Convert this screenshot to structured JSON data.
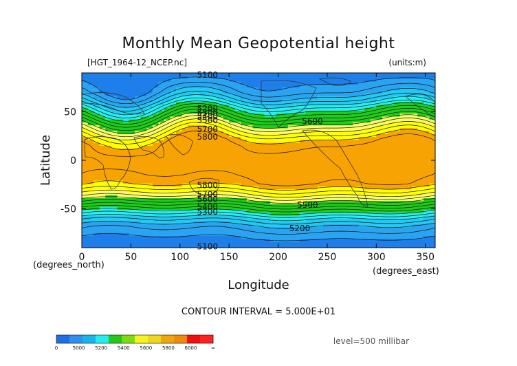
{
  "chart_data": {
    "type": "heatmap",
    "title": "Monthly Mean Geopotential height",
    "file_label": "[HGT_1964-12_NCEP.nc]",
    "units_label": "(units:m)",
    "xlabel": "Longitude",
    "ylabel": "Latitude",
    "x_unit_label": "(degrees_east)",
    "y_unit_label": "(degrees_north)",
    "xlim": [
      0,
      360
    ],
    "ylim": [
      -90,
      90
    ],
    "x_ticks": [
      0,
      50,
      100,
      150,
      200,
      250,
      300,
      350
    ],
    "y_ticks": [
      50,
      0,
      -50
    ],
    "contour_interval_text": "CONTOUR INTERVAL = 5.000E+01",
    "level_text": "level=500 millibar",
    "contour_labels": [
      {
        "text": "5100",
        "lon": 128,
        "lat": 88
      },
      {
        "text": "5200",
        "lon": 128,
        "lat": 53
      },
      {
        "text": "5300",
        "lon": 128,
        "lat": 49
      },
      {
        "text": "5400",
        "lon": 128,
        "lat": 45
      },
      {
        "text": "5500",
        "lon": 128,
        "lat": 41
      },
      {
        "text": "5600",
        "lon": 235,
        "lat": 40
      },
      {
        "text": "5700",
        "lon": 128,
        "lat": 32
      },
      {
        "text": "5800",
        "lon": 128,
        "lat": 24
      },
      {
        "text": "5800",
        "lon": 128,
        "lat": -26
      },
      {
        "text": "5700",
        "lon": 128,
        "lat": -35
      },
      {
        "text": "5600",
        "lon": 128,
        "lat": -40
      },
      {
        "text": "5500",
        "lon": 230,
        "lat": -46
      },
      {
        "text": "5400",
        "lon": 128,
        "lat": -48
      },
      {
        "text": "5300",
        "lon": 128,
        "lat": -53
      },
      {
        "text": "5200",
        "lon": 222,
        "lat": -70
      },
      {
        "text": "5100",
        "lon": 128,
        "lat": -89
      }
    ],
    "colorbar": {
      "tick_labels": [
        "0",
        "5000",
        "5200",
        "5400",
        "5600",
        "5800",
        "6000",
        "∞"
      ],
      "colors": [
        "#1e6ee8",
        "#2d8fee",
        "#18b4ec",
        "#22eef2",
        "#22c91c",
        "#7cdc10",
        "#f4f41c",
        "#efd71c",
        "#f0a50a",
        "#f08a0a",
        "#f20e0e",
        "#ff2020"
      ]
    }
  }
}
